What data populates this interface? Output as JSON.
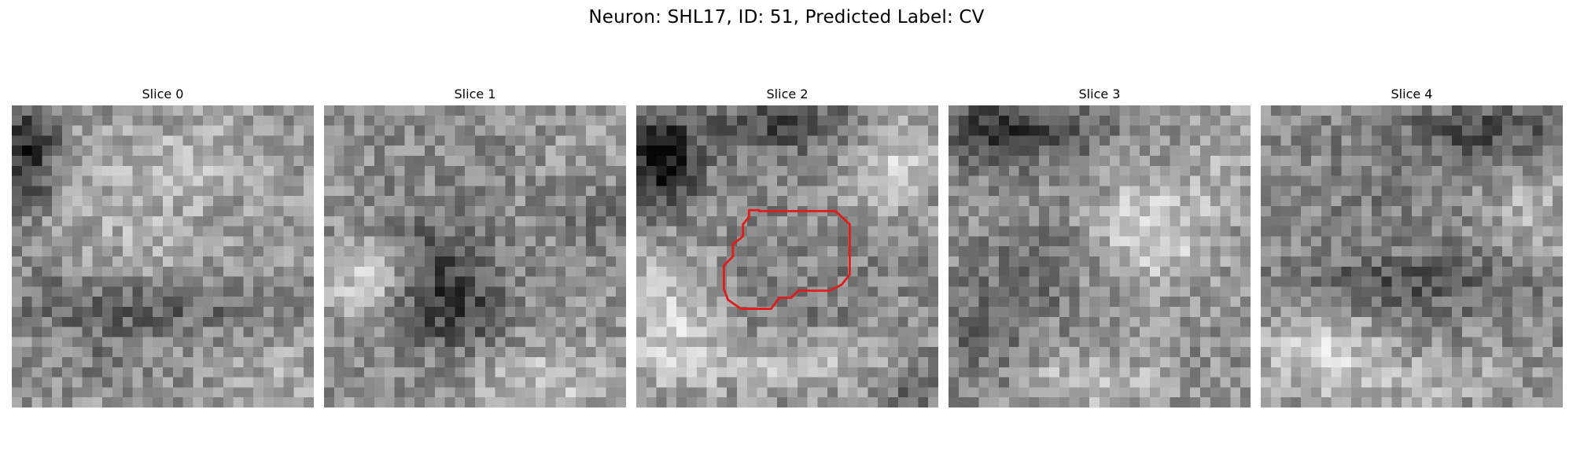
{
  "figure": {
    "title": "Neuron: SHL17, ID: 51, Predicted Label: CV"
  },
  "slices": [
    {
      "title": "Slice 0"
    },
    {
      "title": "Slice 1"
    },
    {
      "title": "Slice 2"
    },
    {
      "title": "Slice 3"
    },
    {
      "title": "Slice 4"
    }
  ],
  "colors": {
    "background": "#ffffff",
    "contour": "#e21b1b",
    "colormap": "gray"
  }
}
